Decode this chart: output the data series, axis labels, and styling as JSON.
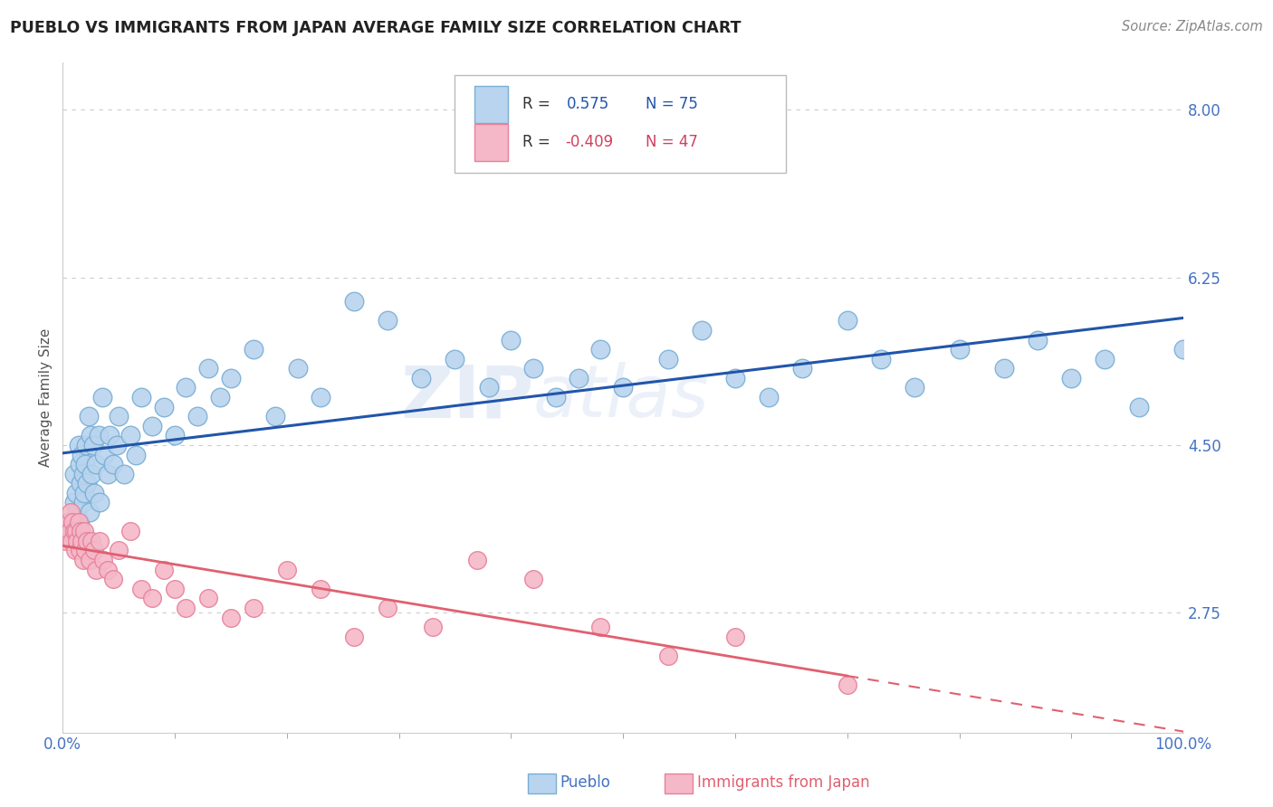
{
  "title": "PUEBLO VS IMMIGRANTS FROM JAPAN AVERAGE FAMILY SIZE CORRELATION CHART",
  "source": "Source: ZipAtlas.com",
  "ylabel": "Average Family Size",
  "x_min": 0.0,
  "x_max": 1.0,
  "y_min": 1.5,
  "y_max": 8.5,
  "yticks": [
    2.75,
    4.5,
    6.25,
    8.0
  ],
  "xtick_labels": [
    "0.0%",
    "100.0%"
  ],
  "legend_r1": "R =  0.575",
  "legend_n1": "N = 75",
  "legend_r2": "R = -0.409",
  "legend_n2": "N = 47",
  "series1_color": "#b8d4ee",
  "series1_edge": "#7aaed4",
  "series2_color": "#f4b8c8",
  "series2_edge": "#e8809a",
  "line1_color": "#2255aa",
  "line2_color": "#e06070",
  "background_color": "#ffffff",
  "grid_color": "#cccccc",
  "title_color": "#222222",
  "right_tick_color": "#4472c4",
  "bottom_tick_color": "#4472c4",
  "pueblo_x": [
    0.005,
    0.008,
    0.01,
    0.01,
    0.012,
    0.013,
    0.014,
    0.015,
    0.015,
    0.016,
    0.017,
    0.018,
    0.018,
    0.019,
    0.02,
    0.021,
    0.022,
    0.023,
    0.024,
    0.025,
    0.026,
    0.027,
    0.028,
    0.03,
    0.032,
    0.033,
    0.035,
    0.037,
    0.04,
    0.042,
    0.045,
    0.048,
    0.05,
    0.055,
    0.06,
    0.065,
    0.07,
    0.08,
    0.09,
    0.1,
    0.11,
    0.12,
    0.13,
    0.14,
    0.15,
    0.17,
    0.19,
    0.21,
    0.23,
    0.26,
    0.29,
    0.32,
    0.35,
    0.38,
    0.4,
    0.42,
    0.44,
    0.46,
    0.48,
    0.5,
    0.54,
    0.57,
    0.6,
    0.63,
    0.66,
    0.7,
    0.73,
    0.76,
    0.8,
    0.84,
    0.87,
    0.9,
    0.93,
    0.96,
    1.0
  ],
  "pueblo_y": [
    3.6,
    3.5,
    4.2,
    3.9,
    4.0,
    3.8,
    4.5,
    3.7,
    4.3,
    4.1,
    4.4,
    3.9,
    4.2,
    4.0,
    4.3,
    4.5,
    4.1,
    4.8,
    3.8,
    4.6,
    4.2,
    4.5,
    4.0,
    4.3,
    4.6,
    3.9,
    5.0,
    4.4,
    4.2,
    4.6,
    4.3,
    4.5,
    4.8,
    4.2,
    4.6,
    4.4,
    5.0,
    4.7,
    4.9,
    4.6,
    5.1,
    4.8,
    5.3,
    5.0,
    5.2,
    5.5,
    4.8,
    5.3,
    5.0,
    6.0,
    5.8,
    5.2,
    5.4,
    5.1,
    5.6,
    5.3,
    5.0,
    5.2,
    5.5,
    5.1,
    5.4,
    5.7,
    5.2,
    5.0,
    5.3,
    5.8,
    5.4,
    5.1,
    5.5,
    5.3,
    5.6,
    5.2,
    5.4,
    4.9,
    5.5
  ],
  "japan_x": [
    0.003,
    0.005,
    0.006,
    0.007,
    0.008,
    0.009,
    0.01,
    0.011,
    0.012,
    0.013,
    0.014,
    0.015,
    0.016,
    0.017,
    0.018,
    0.019,
    0.02,
    0.022,
    0.024,
    0.026,
    0.028,
    0.03,
    0.033,
    0.036,
    0.04,
    0.045,
    0.05,
    0.06,
    0.07,
    0.08,
    0.09,
    0.1,
    0.11,
    0.13,
    0.15,
    0.17,
    0.2,
    0.23,
    0.26,
    0.29,
    0.33,
    0.37,
    0.42,
    0.48,
    0.54,
    0.6,
    0.7
  ],
  "japan_y": [
    3.5,
    3.7,
    3.6,
    3.8,
    3.5,
    3.7,
    3.6,
    3.4,
    3.6,
    3.5,
    3.7,
    3.4,
    3.6,
    3.5,
    3.3,
    3.6,
    3.4,
    3.5,
    3.3,
    3.5,
    3.4,
    3.2,
    3.5,
    3.3,
    3.2,
    3.1,
    3.4,
    3.6,
    3.0,
    2.9,
    3.2,
    3.0,
    2.8,
    2.9,
    2.7,
    2.8,
    3.2,
    3.0,
    2.5,
    2.8,
    2.6,
    3.3,
    3.1,
    2.6,
    2.3,
    2.5,
    2.0
  ]
}
